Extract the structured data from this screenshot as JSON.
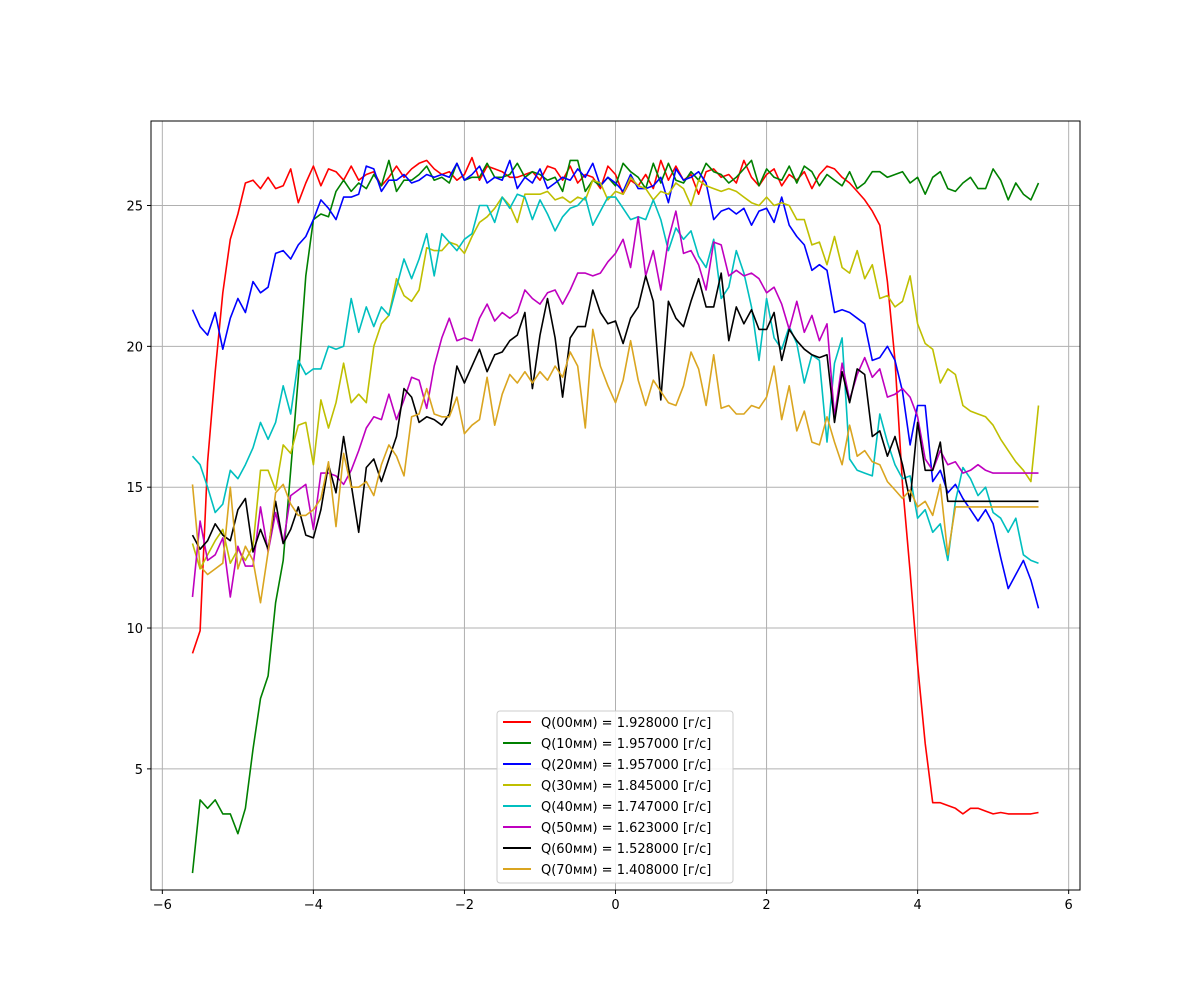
{
  "chart_data": {
    "type": "line",
    "title": "",
    "xlabel": "",
    "ylabel": "",
    "xlim": [
      -6.15,
      6.15
    ],
    "ylim": [
      0.7,
      28.0
    ],
    "grid": true,
    "legend_location": "lower center",
    "xticks": [
      -6,
      -4,
      -2,
      0,
      2,
      4,
      6
    ],
    "xtick_labels": [
      "−6",
      "−4",
      "−2",
      "0",
      "2",
      "4",
      "6"
    ],
    "yticks": [
      5,
      10,
      15,
      20,
      25
    ],
    "ytick_labels": [
      "5",
      "10",
      "15",
      "20",
      "25"
    ],
    "x": [
      -5.6,
      -5.5,
      -5.4,
      -5.3,
      -5.2,
      -5.1,
      -5.0,
      -4.9,
      -4.8,
      -4.7,
      -4.6,
      -4.5,
      -4.4,
      -4.3,
      -4.2,
      -4.1,
      -4.0,
      -3.9,
      -3.8,
      -3.7,
      -3.6,
      -3.5,
      -3.4,
      -3.3,
      -3.2,
      -3.1,
      -3.0,
      -2.9,
      -2.8,
      -2.7,
      -2.6,
      -2.5,
      -2.4,
      -2.3,
      -2.2,
      -2.1,
      -2.0,
      -1.9,
      -1.8,
      -1.7,
      -1.6,
      -1.5,
      -1.4,
      -1.3,
      -1.2,
      -1.1,
      -1.0,
      -0.9,
      -0.8,
      -0.7,
      -0.6,
      -0.5,
      -0.4,
      -0.3,
      -0.2,
      -0.1,
      0.0,
      0.1,
      0.2,
      0.3,
      0.4,
      0.5,
      0.6,
      0.7,
      0.8,
      0.9,
      1.0,
      1.1,
      1.2,
      1.3,
      1.4,
      1.5,
      1.6,
      1.7,
      1.8,
      1.9,
      2.0,
      2.1,
      2.2,
      2.3,
      2.4,
      2.5,
      2.6,
      2.7,
      2.8,
      2.9,
      3.0,
      3.1,
      3.2,
      3.3,
      3.4,
      3.5,
      3.6,
      3.7,
      3.8,
      3.9,
      4.0,
      4.1,
      4.2,
      4.3,
      4.4,
      4.5,
      4.6,
      4.7,
      4.8,
      4.9,
      5.0,
      5.1,
      5.2,
      5.3,
      5.4,
      5.5,
      5.6
    ],
    "series": [
      {
        "name": "Q(00мм) = 1.928000  [г/с]",
        "color": "#ff0000",
        "values": [
          9.1,
          9.9,
          15.9,
          19.1,
          21.9,
          23.8,
          24.7,
          25.8,
          25.9,
          25.6,
          26.0,
          25.6,
          25.7,
          26.3,
          25.1,
          25.8,
          26.4,
          25.7,
          26.3,
          26.2,
          25.9,
          26.4,
          25.9,
          26.1,
          26.2,
          25.7,
          26.0,
          26.4,
          26.0,
          26.3,
          26.5,
          26.6,
          26.3,
          26.1,
          26.2,
          25.9,
          26.1,
          26.7,
          25.9,
          26.4,
          26.3,
          26.2,
          26.0,
          26.0,
          26.1,
          26.2,
          25.9,
          26.4,
          26.3,
          25.9,
          26.4,
          25.8,
          26.1,
          26.0,
          25.6,
          26.4,
          26.1,
          25.4,
          25.9,
          25.7,
          26.1,
          25.6,
          26.6,
          25.9,
          26.4,
          25.9,
          26.1,
          25.4,
          26.2,
          26.3,
          26.0,
          26.1,
          25.8,
          26.6,
          26.0,
          25.7,
          26.1,
          26.3,
          25.7,
          26.1,
          25.9,
          26.2,
          25.6,
          26.1,
          26.4,
          26.3,
          26.0,
          25.8,
          25.5,
          25.2,
          24.8,
          24.3,
          22.3,
          19.5,
          15.1,
          12.0,
          8.7,
          5.9,
          3.8,
          3.8,
          3.7,
          3.6,
          3.4,
          3.6,
          3.6,
          3.5,
          3.4,
          3.45,
          3.4,
          3.4,
          3.4,
          3.4,
          3.45
        ],
        "visible_points": 113
      },
      {
        "name": "Q(10мм) = 1.957000  [г/с]",
        "color": "#008000",
        "values": [
          1.3,
          3.9,
          3.6,
          3.9,
          3.4,
          3.4,
          2.7,
          3.6,
          5.7,
          7.5,
          8.3,
          10.9,
          12.4,
          15.6,
          18.9,
          22.5,
          24.5,
          24.7,
          24.6,
          25.5,
          25.9,
          25.5,
          25.8,
          25.6,
          26.1,
          25.7,
          26.6,
          25.5,
          25.9,
          25.9,
          26.1,
          26.4,
          25.9,
          26.0,
          25.8,
          26.5,
          25.9,
          26.0,
          26.0,
          26.5,
          26.0,
          26.0,
          26.1,
          26.5,
          26.0,
          26.2,
          26.1,
          25.9,
          26.0,
          25.5,
          26.6,
          26.6,
          25.5,
          25.9,
          25.7,
          26.0,
          25.7,
          26.5,
          26.2,
          26.0,
          25.6,
          26.5,
          25.8,
          26.5,
          25.9,
          25.8,
          26.2,
          25.9,
          26.5,
          26.2,
          26.1,
          25.8,
          26.0,
          26.3,
          26.6,
          25.7,
          26.3,
          26.0,
          25.9,
          26.4,
          25.8,
          26.4,
          26.2,
          25.7,
          26.1,
          25.9,
          25.7,
          26.2,
          25.6,
          25.8,
          26.2,
          26.2,
          26.0,
          26.1,
          26.2,
          25.8,
          26.0,
          25.4,
          26.0,
          26.2,
          25.6,
          25.5,
          25.8,
          26.0,
          25.6,
          25.6,
          26.3,
          25.9,
          25.2,
          25.8,
          25.4,
          25.2,
          25.8
        ],
        "visible_points": 113
      },
      {
        "name": "Q(20мм) = 1.957000  [г/с]",
        "color": "#0000ff",
        "values": [
          21.3,
          20.7,
          20.4,
          21.2,
          19.9,
          21.0,
          21.7,
          21.2,
          22.3,
          21.9,
          22.1,
          23.3,
          23.4,
          23.1,
          23.6,
          23.9,
          24.5,
          25.2,
          24.9,
          24.5,
          25.3,
          25.3,
          25.4,
          26.4,
          26.3,
          25.5,
          25.9,
          25.9,
          26.1,
          25.8,
          25.9,
          26.1,
          26.0,
          26.1,
          26.0,
          26.5,
          25.9,
          26.1,
          26.4,
          25.8,
          26.0,
          25.9,
          26.6,
          25.6,
          26.0,
          25.8,
          26.3,
          25.6,
          25.8,
          26.0,
          25.9,
          26.3,
          26.0,
          26.5,
          25.7,
          26.0,
          25.8,
          25.5,
          26.1,
          25.6,
          25.6,
          25.7,
          26.0,
          25.1,
          26.3,
          25.9,
          26.0,
          26.2,
          25.8,
          24.5,
          24.8,
          24.9,
          24.7,
          24.9,
          24.3,
          24.8,
          24.9,
          24.4,
          25.3,
          24.3,
          23.9,
          23.6,
          22.7,
          22.9,
          22.7,
          21.2,
          21.3,
          21.2,
          21.0,
          20.8,
          19.5,
          19.6,
          20.0,
          19.5,
          18.4,
          16.5,
          17.9,
          17.9,
          15.2,
          15.6,
          14.8,
          15.1,
          14.6,
          14.2,
          13.8,
          14.2,
          13.7,
          12.5,
          11.4,
          11.9,
          12.4,
          11.7,
          10.7
        ],
        "visible_points": 113
      },
      {
        "name": "Q(30мм) = 1.845000  [г/с]",
        "color": "#bfbf00",
        "values": [
          13.0,
          12.1,
          12.6,
          13.1,
          13.5,
          12.3,
          12.8,
          12.4,
          12.9,
          15.6,
          15.6,
          14.9,
          16.5,
          16.2,
          17.2,
          17.3,
          15.8,
          18.1,
          17.1,
          18.0,
          19.4,
          18.0,
          18.3,
          18.0,
          20.0,
          20.8,
          21.1,
          22.4,
          21.8,
          21.6,
          22.0,
          23.5,
          23.4,
          23.4,
          23.7,
          23.6,
          23.3,
          23.9,
          24.4,
          24.6,
          24.9,
          25.3,
          25.0,
          24.4,
          25.4,
          25.4,
          25.4,
          25.5,
          25.2,
          25.3,
          25.1,
          25.3,
          25.2,
          25.9,
          25.8,
          25.2,
          25.5,
          25.4,
          26.0,
          25.7,
          25.6,
          25.2,
          25.5,
          25.4,
          25.8,
          25.6,
          25.0,
          25.9,
          25.7,
          25.6,
          25.5,
          25.6,
          25.5,
          25.3,
          25.1,
          25.0,
          25.3,
          25.0,
          25.1,
          25.0,
          24.5,
          24.5,
          23.6,
          23.7,
          22.9,
          23.9,
          22.8,
          22.6,
          23.4,
          22.4,
          22.9,
          21.7,
          21.8,
          21.4,
          21.6,
          22.5,
          20.8,
          20.1,
          19.9,
          18.7,
          19.2,
          19.0,
          17.9,
          17.7,
          17.6,
          17.5,
          17.2,
          16.7,
          16.3,
          15.9,
          15.6,
          15.2,
          17.9
        ],
        "visible_points": 113
      },
      {
        "name": "Q(40мм) = 1.747000  [г/с]",
        "color": "#00bfbf",
        "values": [
          16.1,
          15.8,
          15.0,
          14.1,
          14.4,
          15.6,
          15.3,
          15.8,
          16.4,
          17.3,
          16.7,
          17.3,
          18.6,
          17.6,
          19.5,
          19.0,
          19.2,
          19.2,
          20.0,
          19.9,
          20.0,
          21.7,
          20.5,
          21.4,
          20.7,
          21.4,
          21.1,
          22.1,
          23.1,
          22.4,
          23.1,
          24.0,
          22.5,
          24.0,
          23.7,
          23.4,
          23.8,
          24.0,
          25.0,
          25.0,
          24.4,
          25.3,
          24.9,
          25.4,
          25.3,
          24.5,
          25.2,
          24.7,
          24.1,
          24.6,
          24.9,
          25.0,
          25.3,
          24.3,
          24.8,
          25.3,
          25.3,
          24.9,
          24.5,
          24.6,
          24.5,
          25.2,
          24.5,
          23.4,
          24.2,
          23.8,
          24.1,
          23.2,
          22.8,
          23.8,
          21.7,
          22.1,
          23.4,
          22.6,
          21.4,
          19.5,
          21.7,
          20.3,
          19.9,
          20.7,
          20.1,
          18.7,
          19.7,
          19.5,
          16.6,
          19.4,
          20.3,
          16.0,
          15.6,
          15.5,
          15.4,
          17.6,
          16.6,
          15.8,
          15.3,
          15.4,
          13.9,
          14.2,
          13.4,
          13.7,
          12.4,
          14.5,
          15.7,
          15.3,
          14.7,
          15.0,
          14.1,
          13.9,
          13.4,
          13.9,
          12.6,
          12.4,
          12.3
        ],
        "visible_points": 113
      },
      {
        "name": "Q(50мм) = 1.623000  [г/с]",
        "color": "#bf00bf",
        "values": [
          11.1,
          13.8,
          12.4,
          12.6,
          13.2,
          11.1,
          12.9,
          12.2,
          12.2,
          14.3,
          12.7,
          14.1,
          13.0,
          14.7,
          14.9,
          15.1,
          13.5,
          15.5,
          15.5,
          15.4,
          15.1,
          15.6,
          16.3,
          17.1,
          17.5,
          17.4,
          18.3,
          17.4,
          18.1,
          18.9,
          18.8,
          17.8,
          19.3,
          20.3,
          21.0,
          20.2,
          20.3,
          20.2,
          21.0,
          21.5,
          20.9,
          21.2,
          21.0,
          21.2,
          22.0,
          21.7,
          21.5,
          21.9,
          22.0,
          21.5,
          22.0,
          22.6,
          22.6,
          22.5,
          22.6,
          23.0,
          23.3,
          23.8,
          22.8,
          24.6,
          22.5,
          23.4,
          22.0,
          23.8,
          24.8,
          23.3,
          23.4,
          22.9,
          22.0,
          23.7,
          23.6,
          22.5,
          22.7,
          22.5,
          22.6,
          22.4,
          21.9,
          22.1,
          21.5,
          20.6,
          21.6,
          20.5,
          21.1,
          20.2,
          20.8,
          17.5,
          19.4,
          18.1,
          19.0,
          19.6,
          18.9,
          19.2,
          18.2,
          18.3,
          18.5,
          18.2,
          17.5,
          16.0,
          15.6,
          16.3,
          15.8,
          15.9,
          15.5,
          15.6,
          15.8,
          15.6,
          15.5,
          15.5,
          15.5,
          15.5,
          15.5,
          15.5,
          15.5
        ],
        "visible_points": 113
      },
      {
        "name": "Q(60мм) = 1.528000  [г/с]",
        "color": "#000000",
        "values": [
          13.3,
          12.8,
          13.1,
          13.7,
          13.3,
          13.1,
          14.2,
          14.6,
          12.7,
          13.5,
          12.8,
          14.5,
          13.0,
          13.5,
          14.3,
          13.3,
          13.2,
          14.2,
          15.8,
          14.8,
          16.8,
          15.1,
          13.4,
          15.7,
          16.0,
          15.2,
          16.0,
          16.8,
          18.5,
          18.2,
          17.3,
          17.5,
          17.4,
          17.2,
          17.6,
          19.3,
          18.7,
          19.3,
          19.9,
          19.1,
          19.7,
          19.8,
          20.2,
          20.4,
          21.2,
          18.5,
          20.4,
          21.7,
          20.3,
          18.2,
          20.3,
          20.7,
          20.7,
          22.0,
          21.2,
          20.8,
          20.9,
          20.1,
          21.0,
          21.4,
          22.5,
          21.6,
          18.1,
          21.6,
          21.0,
          20.7,
          21.6,
          22.4,
          21.4,
          21.4,
          22.6,
          20.2,
          21.4,
          20.8,
          21.3,
          20.6,
          20.6,
          21.2,
          19.5,
          20.6,
          20.2,
          19.9,
          19.7,
          19.6,
          19.7,
          17.3,
          19.1,
          18.0,
          19.2,
          19.0,
          16.8,
          17.0,
          16.1,
          16.8,
          15.8,
          14.5,
          17.3,
          15.6,
          15.6,
          16.6,
          14.5,
          14.5,
          14.5,
          14.5,
          14.5,
          14.5,
          14.5,
          14.5,
          14.5,
          14.5,
          14.5,
          14.5,
          14.5
        ],
        "visible_points": 113
      },
      {
        "name": "Q(70мм) = 1.408000  [г/с]",
        "color": "#daa520",
        "values": [
          15.1,
          12.2,
          11.9,
          12.1,
          12.3,
          15.0,
          12.1,
          12.9,
          12.4,
          10.9,
          12.7,
          14.8,
          15.1,
          14.4,
          14.0,
          14.0,
          14.2,
          14.6,
          15.9,
          13.6,
          16.2,
          15.0,
          15.0,
          15.2,
          14.7,
          15.8,
          16.5,
          16.1,
          15.4,
          17.5,
          17.6,
          18.5,
          17.6,
          17.5,
          17.5,
          18.2,
          16.9,
          17.2,
          17.4,
          18.9,
          17.2,
          18.3,
          19.0,
          18.7,
          19.1,
          18.7,
          19.1,
          18.8,
          19.3,
          18.9,
          19.8,
          19.3,
          17.1,
          20.6,
          19.3,
          18.6,
          18.0,
          18.8,
          20.2,
          18.8,
          17.9,
          18.8,
          18.4,
          18.0,
          17.9,
          18.6,
          19.8,
          19.2,
          17.9,
          19.7,
          17.8,
          17.9,
          17.6,
          17.6,
          17.9,
          17.8,
          18.2,
          19.3,
          17.4,
          18.6,
          17.0,
          17.7,
          16.6,
          16.5,
          17.5,
          16.6,
          15.8,
          17.2,
          16.1,
          16.3,
          15.9,
          15.8,
          15.2,
          14.9,
          14.6,
          14.9,
          14.3,
          14.5,
          14.0,
          15.1,
          12.6,
          14.3,
          14.3,
          14.3,
          14.3,
          14.3,
          14.3,
          14.3,
          14.3,
          14.3,
          14.3,
          14.3,
          14.3
        ],
        "visible_points": 113
      }
    ]
  }
}
